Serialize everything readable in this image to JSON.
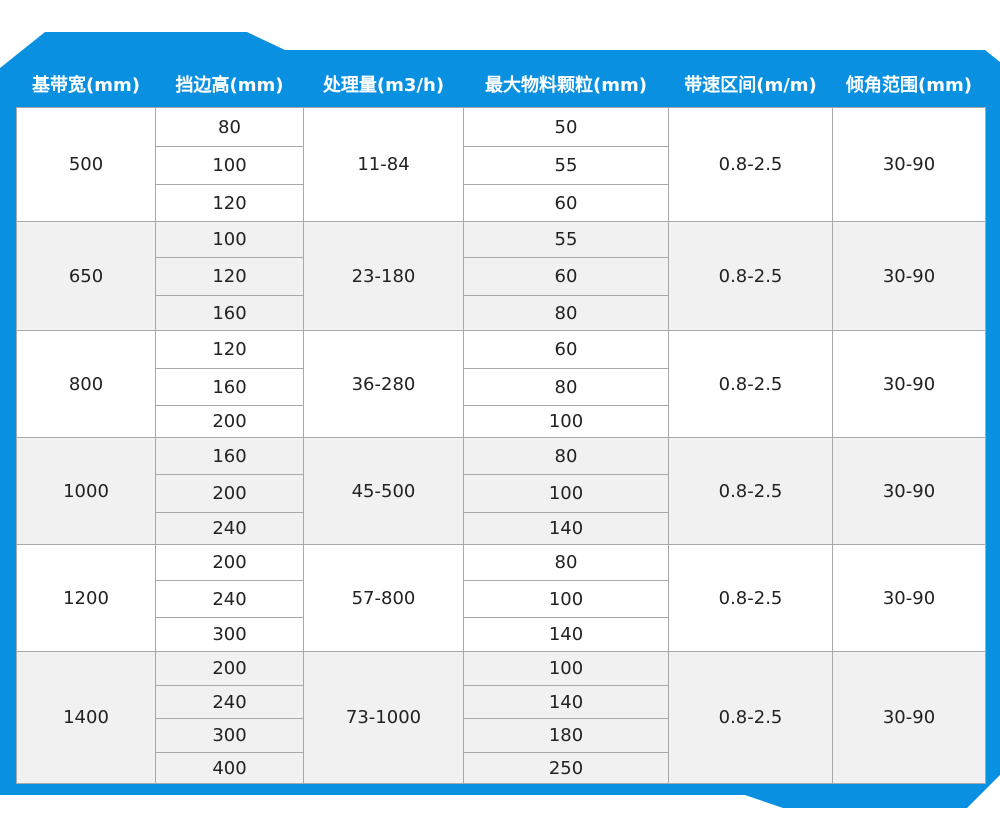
{
  "colors": {
    "frame": "#0a90e0",
    "alt_row": "#f1f1f1"
  },
  "headers": [
    "基带宽(mm)",
    "挡边高(mm)",
    "处理量(m3/h)",
    "最大物料颗粒(mm)",
    "带速区间(m/m)",
    "倾角范围(mm)"
  ],
  "groups": [
    {
      "width": "500",
      "heights": [
        "80",
        "100",
        "120"
      ],
      "capacity": "11-84",
      "particles": [
        "50",
        "55",
        "60"
      ],
      "speed": "0.8-2.5",
      "angle": "30-90"
    },
    {
      "width": "650",
      "heights": [
        "100",
        "120",
        "160"
      ],
      "capacity": "23-180",
      "particles": [
        "55",
        "60",
        "80"
      ],
      "speed": "0.8-2.5",
      "angle": "30-90"
    },
    {
      "width": "800",
      "heights": [
        "120",
        "160",
        "200"
      ],
      "capacity": "36-280",
      "particles": [
        "60",
        "80",
        "100"
      ],
      "speed": "0.8-2.5",
      "angle": "30-90"
    },
    {
      "width": "1000",
      "heights": [
        "160",
        "200",
        "240"
      ],
      "capacity": "45-500",
      "particles": [
        "80",
        "100",
        "140"
      ],
      "speed": "0.8-2.5",
      "angle": "30-90"
    },
    {
      "width": "1200",
      "heights": [
        "200",
        "240",
        "300"
      ],
      "capacity": "57-800",
      "particles": [
        "80",
        "100",
        "140"
      ],
      "speed": "0.8-2.5",
      "angle": "30-90"
    },
    {
      "width": "1400",
      "heights": [
        "200",
        "240",
        "300",
        "400"
      ],
      "capacity": "73-1000",
      "particles": [
        "100",
        "140",
        "180",
        "250"
      ],
      "speed": "0.8-2.5",
      "angle": "30-90"
    }
  ]
}
